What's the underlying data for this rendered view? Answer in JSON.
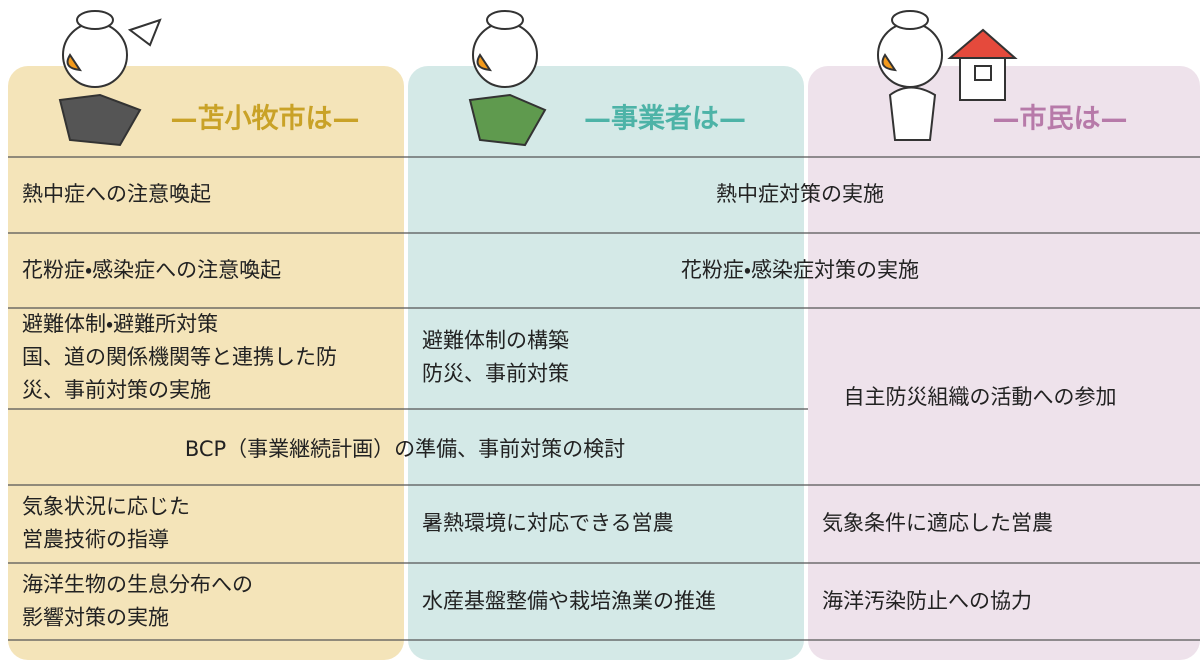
{
  "header": {
    "columns": [
      "—苫小牧市は—",
      "—事業者は—",
      "—市民は—"
    ]
  },
  "table": {
    "rows": [
      [
        {
          "lines": [
            "熱中症への注意喚起"
          ]
        },
        {
          "lines": [
            "熱中症対策の実施"
          ]
        }
      ],
      [
        {
          "lines": [
            "花粉症・感染症への注意喚起"
          ]
        },
        {
          "lines": [
            "花粉症・感染症対策の実施"
          ]
        }
      ],
      [
        {
          "lines": [
            "避難体制・避難所対策",
            "国、道の関係機関等と連携した防",
            "災、事前対策の実施"
          ]
        },
        {
          "lines": [
            "避難体制の構築",
            "防災、事前対策"
          ]
        },
        {
          "lines": [
            "自主防災組織の活動への参加"
          ]
        }
      ],
      [
        {
          "lines": [
            "BCP（事業継続計画）の準備、事前対策の検討"
          ]
        }
      ],
      [
        {
          "lines": [
            "気象状況に応じた",
            "営農技術の指導"
          ]
        },
        {
          "lines": [
            "暑熱環境に対応できる営農"
          ]
        },
        {
          "lines": [
            "気象条件に適応した営農"
          ]
        }
      ],
      [
        {
          "lines": [
            "海洋生物の生息分布への",
            "影響対策の実施"
          ]
        },
        {
          "lines": [
            "水産基盤整備や栽培漁業の推進"
          ]
        },
        {
          "lines": [
            "海洋汚染防止への協力"
          ]
        }
      ]
    ]
  }
}
